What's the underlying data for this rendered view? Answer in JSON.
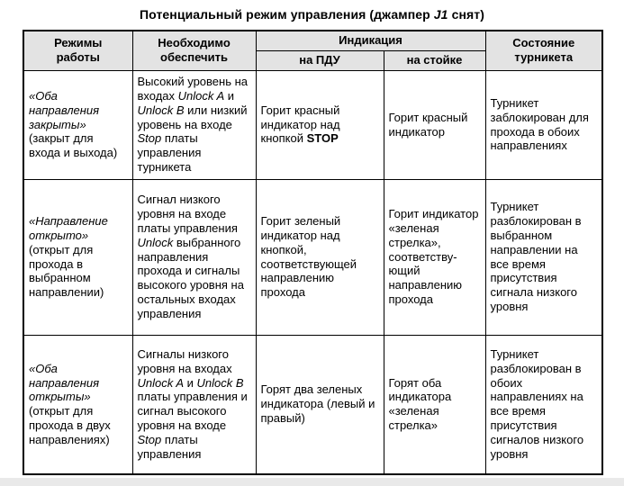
{
  "title": [
    {
      "t": "Потенциальный режим управления (джампер "
    },
    {
      "t": "J1",
      "s": "i"
    },
    {
      "t": " снят)"
    }
  ],
  "table": {
    "header": {
      "modes": "Режимы\nработы",
      "provide": "Необходимо\nобеспечить",
      "indication": "Индикация",
      "pdu": "на ПДУ",
      "stand": "на стойке",
      "state": "Состояние\nтурникета"
    },
    "rows": [
      {
        "mode_name": "«Оба направления закрыты»",
        "mode_note": "(закрыт для входа и выхода)",
        "provide": [
          {
            "t": "Высокий уровень на входах "
          },
          {
            "t": "Unlock A",
            "s": "i"
          },
          {
            "t": " и "
          },
          {
            "t": "Unlock B",
            "s": "i"
          },
          {
            "t": " или низкий уровень на входе "
          },
          {
            "t": "Stop",
            "s": "i"
          },
          {
            "t": " платы управления турникета"
          }
        ],
        "pdu": [
          {
            "t": "Горит красный индикатор над кнопкой "
          },
          {
            "t": "STOP",
            "s": "b"
          }
        ],
        "stand": [
          {
            "t": "Горит красный индикатор"
          }
        ],
        "state": [
          {
            "t": "Турникет заблокирован для прохода в обоих направлениях"
          }
        ]
      },
      {
        "mode_name": "«Направление открыто»",
        "mode_note": "(открыт для прохода в выбранном направлении)",
        "provide": [
          {
            "t": "Сигнал низкого уровня на входе платы управления "
          },
          {
            "t": "Unlock",
            "s": "i"
          },
          {
            "t": " выбранного направления прохода и сигналы высокого уровня на остальных входах управления"
          }
        ],
        "pdu": [
          {
            "t": "Горит зеленый индикатор над кнопкой, соответствующей направлению прохода"
          }
        ],
        "stand": [
          {
            "t": "Горит индикатор «зеленая стрелка», соответству­ющий направлению прохода"
          }
        ],
        "state": [
          {
            "t": "Турникет разблокирован в выбранном направлении на все время присутствия сигнала низкого уровня"
          }
        ]
      },
      {
        "mode_name": "«Оба направления открыты»",
        "mode_note": "(открыт для прохода в двух направлениях)",
        "provide": [
          {
            "t": "Сигналы низкого уровня на входах "
          },
          {
            "t": "Unlock A",
            "s": "i"
          },
          {
            "t": " и "
          },
          {
            "t": "Unlock B",
            "s": "i"
          },
          {
            "t": " платы управления и сигнал высокого уровня на входе "
          },
          {
            "t": "Stop",
            "s": "i"
          },
          {
            "t": " платы управления"
          }
        ],
        "pdu": [
          {
            "t": "Горят два зеленых индикатора (левый и правый)"
          }
        ],
        "stand": [
          {
            "t": "Горят оба индикатора «зеленая стрелка»"
          }
        ],
        "state": [
          {
            "t": "Турникет разблокирован в обоих направлениях на все время присутствия сигналов низкого уровня"
          }
        ]
      }
    ]
  },
  "colors": {
    "header_bg": "#e3e3e3",
    "border": "#000000",
    "page_edge": "#e9e9e9"
  }
}
